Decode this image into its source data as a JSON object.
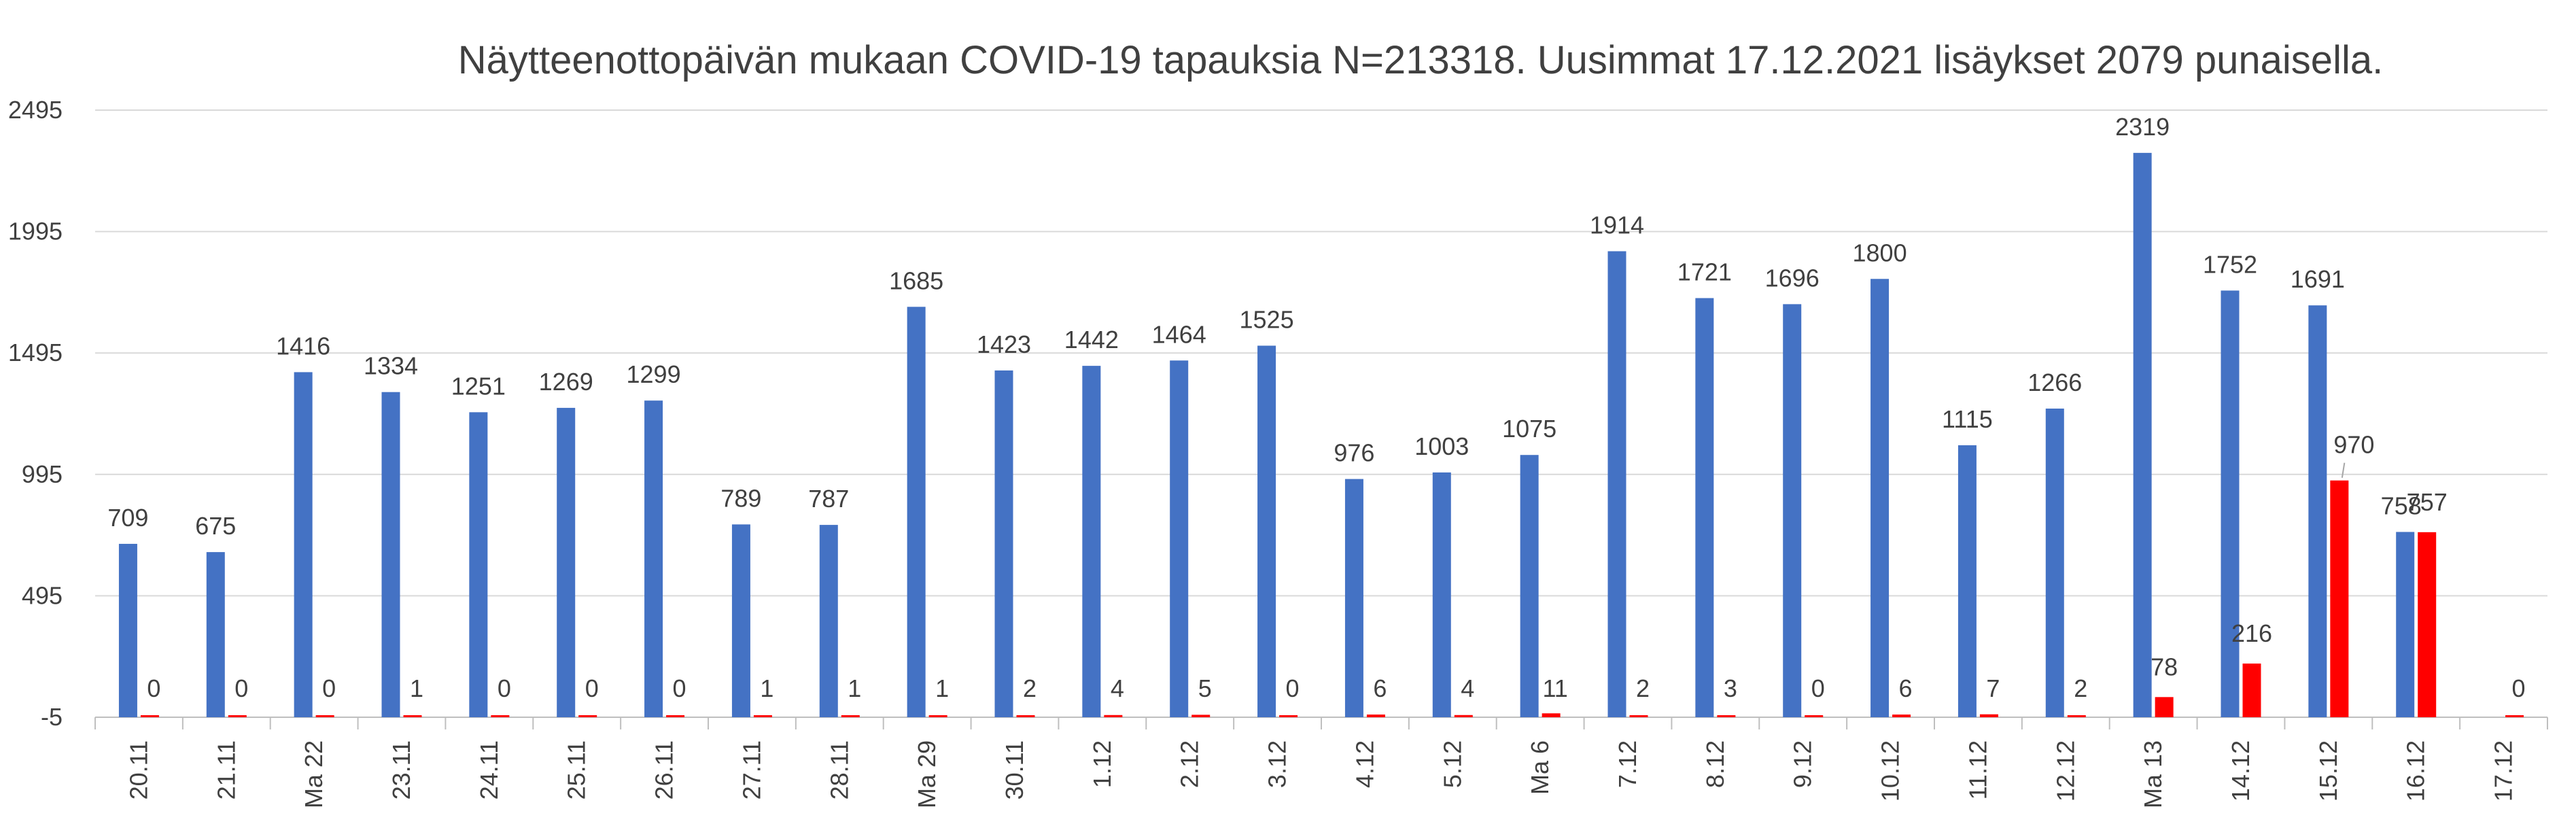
{
  "chart_data": {
    "type": "bar",
    "title": "Näytteenottopäivän mukaan COVID-19 tapauksia N=213318. Uusimmat 17.12.2021 lisäykset 2079 punaisella.",
    "xlabel": "",
    "ylabel": "",
    "ylim": [
      -5,
      2495
    ],
    "yticks": [
      -5,
      495,
      995,
      1495,
      1995,
      2495
    ],
    "grid": true,
    "categories": [
      "20.11",
      "21.11",
      "Ma 22",
      "23.11",
      "24.11",
      "25.11",
      "26.11",
      "27.11",
      "28.11",
      "Ma 29",
      "30.11",
      "1.12",
      "2.12",
      "3.12",
      "4.12",
      "5.12",
      "Ma 6",
      "7.12",
      "8.12",
      "9.12",
      "10.12",
      "11.12",
      "12.12",
      "Ma 13",
      "14.12",
      "15.12",
      "16.12",
      "17.12"
    ],
    "series": [
      {
        "color": "#4472c4",
        "values": [
          709,
          675,
          1416,
          1334,
          1251,
          1269,
          1299,
          789,
          787,
          1685,
          1423,
          1442,
          1464,
          1525,
          976,
          1003,
          1075,
          1914,
          1721,
          1696,
          1800,
          1115,
          1266,
          2319,
          1752,
          1691,
          758,
          null
        ],
        "labels": [
          "709",
          "675",
          "1416",
          "1334",
          "1251",
          "1269",
          "1299",
          "789",
          "787",
          "1685",
          "1423",
          "1442",
          "1464",
          "1525",
          "976",
          "1003",
          "1075",
          "1914",
          "1721",
          "1696",
          "1800",
          "1115",
          "1266",
          "2319",
          "1752",
          "1691",
          "758",
          ""
        ]
      },
      {
        "color": "#ff0000",
        "values": [
          0,
          0,
          0,
          1,
          0,
          0,
          0,
          1,
          1,
          1,
          2,
          4,
          5,
          0,
          6,
          4,
          11,
          2,
          3,
          0,
          6,
          7,
          2,
          78,
          216,
          970,
          757,
          0
        ],
        "labels": [
          "0",
          "0",
          "0",
          "1",
          "0",
          "0",
          "0",
          "1",
          "1",
          "1",
          "2",
          "4",
          "5",
          "0",
          "6",
          "4",
          "11",
          "2",
          "3",
          "0",
          "6",
          "7",
          "2",
          "78",
          "216",
          "970",
          "757",
          "0"
        ]
      }
    ]
  }
}
